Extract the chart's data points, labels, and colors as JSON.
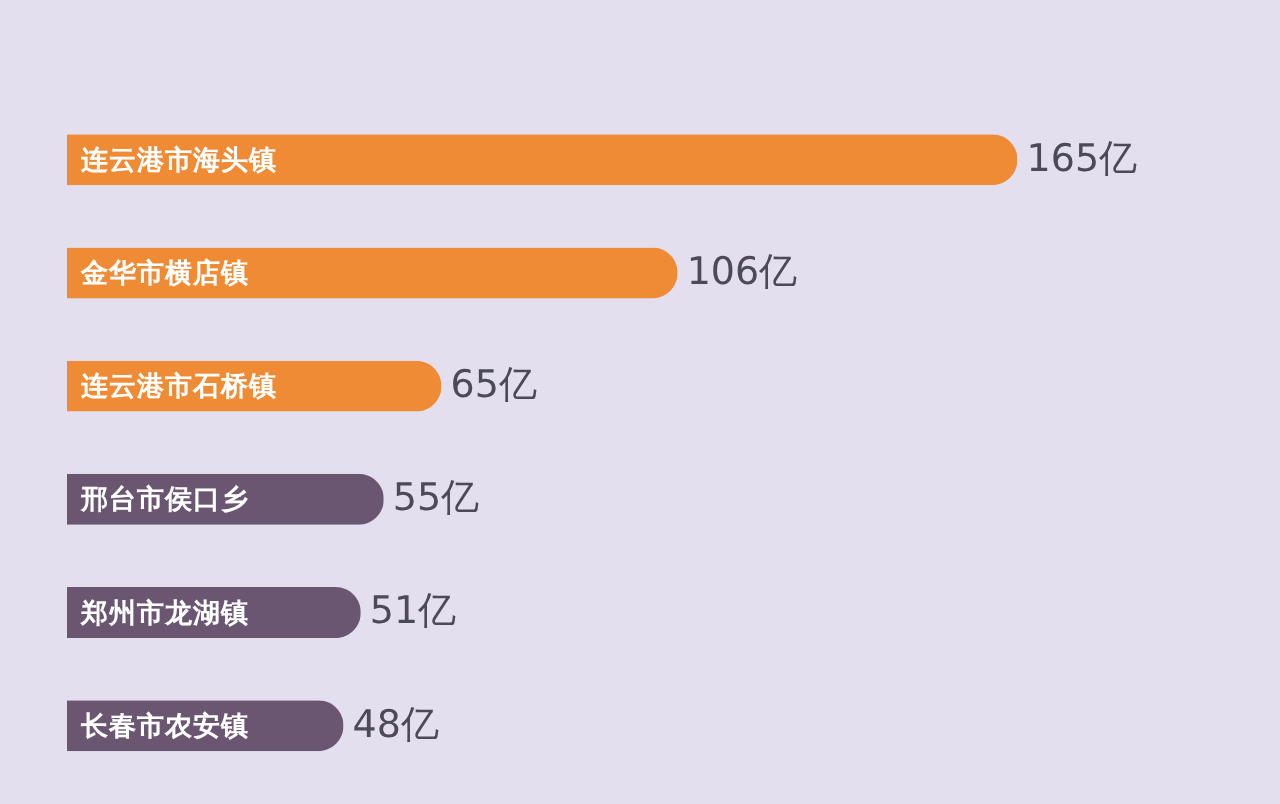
{
  "chart_data": {
    "type": "bar",
    "orientation": "horizontal",
    "categories": [
      "连云港市海头镇",
      "金华市横店镇",
      "连云港市石桥镇",
      "邢台市侯口乡",
      "郑州市龙湖镇",
      "长春市农安镇"
    ],
    "values": [
      165,
      106,
      65,
      55,
      51,
      48
    ],
    "colors": [
      "#ef8a35",
      "#ef8a35",
      "#ef8a35",
      "#6a5670",
      "#6a5670",
      "#6a5670"
    ],
    "value_labels": [
      "165亿",
      "106亿",
      "65亿",
      "55亿",
      "51亿",
      "48亿"
    ]
  }
}
